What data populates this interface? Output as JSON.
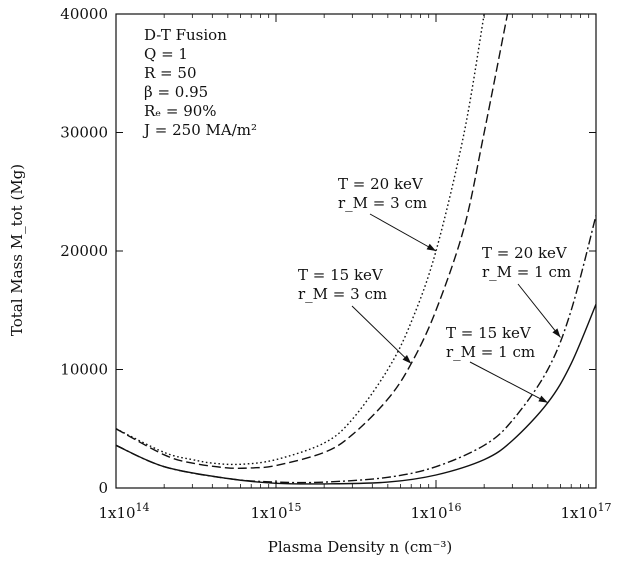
{
  "chart_data": {
    "type": "line",
    "xlabel": "Plasma Density n (cm⁻³)",
    "ylabel": "Total Mass M_tot (Mg)",
    "xscale": "log",
    "xlim": [
      100000000000000.0,
      1e+17
    ],
    "ylim": [
      0,
      40000
    ],
    "grid": false,
    "x_ticks": [
      {
        "value": 100000000000000.0,
        "mant": "1x10",
        "exp": "14"
      },
      {
        "value": 1000000000000000.0,
        "mant": "1x10",
        "exp": "15"
      },
      {
        "value": 1e+16,
        "mant": "1x10",
        "exp": "16"
      },
      {
        "value": 1e+17,
        "mant": "1x10",
        "exp": "17"
      }
    ],
    "y_ticks": [
      {
        "value": 0,
        "label": "0"
      },
      {
        "value": 10000,
        "label": "10000"
      },
      {
        "value": 20000,
        "label": "20000"
      },
      {
        "value": 30000,
        "label": "30000"
      },
      {
        "value": 40000,
        "label": "40000"
      }
    ],
    "parameters": [
      "D-T Fusion",
      "Q = 1",
      "R = 50",
      "β = 0.95",
      "Rₑ = 90%",
      "J = 250 MA/m²"
    ],
    "series": [
      {
        "name": "T = 20 keV, r_M = 3 cm",
        "dash": "dotted",
        "x": [
          100000000000000.0,
          200000000000000.0,
          300000000000000.0,
          400000000000000.0,
          600000000000000.0,
          1000000000000000.0,
          2000000000000000.0,
          3000000000000000.0,
          5000000000000000.0,
          7000000000000000.0,
          1e+16,
          1.5e+16,
          2e+16
        ],
        "y": [
          5000,
          3000,
          2400,
          2100,
          2000,
          2400,
          3800,
          5800,
          10000,
          14000,
          20000,
          30000,
          40000
        ]
      },
      {
        "name": "T = 15 keV, r_M = 3 cm",
        "dash": "dashed",
        "x": [
          100000000000000.0,
          200000000000000.0,
          300000000000000.0,
          500000000000000.0,
          700000000000000.0,
          1000000000000000.0,
          2000000000000000.0,
          3000000000000000.0,
          5000000000000000.0,
          7000000000000000.0,
          1e+16,
          1.5e+16,
          2e+16,
          2.8e+16
        ],
        "y": [
          5000,
          2800,
          2100,
          1700,
          1700,
          1900,
          3000,
          4500,
          7500,
          10500,
          15000,
          22000,
          30000,
          40000
        ]
      },
      {
        "name": "T = 20 keV, r_M = 1 cm",
        "dash": "dashdot",
        "x": [
          100000000000000.0,
          200000000000000.0,
          500000000000000.0,
          1000000000000000.0,
          2000000000000000.0,
          5000000000000000.0,
          1e+16,
          2e+16,
          3e+16,
          5e+16,
          7e+16,
          1e+17
        ],
        "y": [
          3600,
          1800,
          800,
          500,
          500,
          900,
          1800,
          3600,
          5700,
          10000,
          15000,
          23000
        ]
      },
      {
        "name": "T = 15 keV, r_M = 1 cm",
        "dash": "solid",
        "x": [
          100000000000000.0,
          200000000000000.0,
          500000000000000.0,
          1000000000000000.0,
          2000000000000000.0,
          5000000000000000.0,
          1e+16,
          2e+16,
          3e+16,
          5e+16,
          7e+16,
          1e+17
        ],
        "y": [
          3600,
          1800,
          800,
          400,
          350,
          500,
          1100,
          2400,
          4000,
          7200,
          10500,
          15500
        ]
      }
    ],
    "annotations": [
      {
        "line1": "T = 20 keV",
        "line2": "r_M = 3 cm"
      },
      {
        "line1": "T = 15 keV",
        "line2": "r_M = 3 cm"
      },
      {
        "line1": "T = 20 keV",
        "line2": "r_M = 1 cm"
      },
      {
        "line1": "T = 15 keV",
        "line2": "r_M = 1 cm"
      }
    ]
  }
}
